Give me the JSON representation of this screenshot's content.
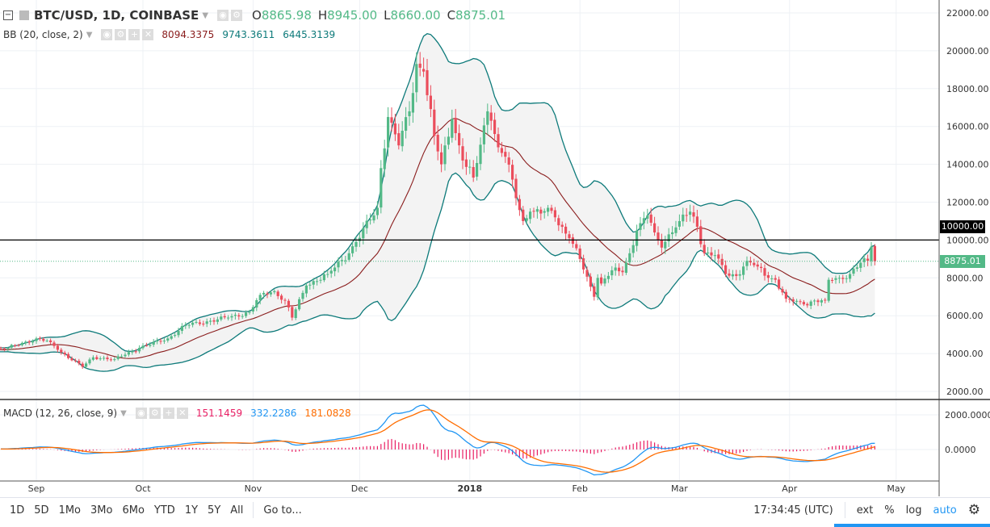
{
  "header": {
    "symbol": "BTC/USD, 1D, COINBASE",
    "open_label": "O",
    "open": "8865.98",
    "high_label": "H",
    "high": "8945.00",
    "low_label": "L",
    "low": "8660.00",
    "close_label": "C",
    "close": "8875.01"
  },
  "bb": {
    "label": "BB (20, close, 2)",
    "basis": "8094.3375",
    "upper": "9743.3611",
    "lower": "6445.3139"
  },
  "macd": {
    "label": "MACD (12, 26, close, 9)",
    "hist": "151.1459",
    "macd": "332.2286",
    "signal": "181.0828"
  },
  "price_axis": [
    "22000.00",
    "20000.00",
    "18000.00",
    "16000.00",
    "14000.00",
    "12000.00",
    "10000.00",
    "8000.00",
    "6000.00",
    "4000.00",
    "2000.00"
  ],
  "macd_axis": [
    "2000.0000",
    "0.0000"
  ],
  "hline_label": "10000.00",
  "last_price_label": "8875.01",
  "time_axis": [
    "Sep",
    "Oct",
    "Nov",
    "Dec",
    "2018",
    "Feb",
    "Mar",
    "Apr",
    "May"
  ],
  "toolbar": {
    "ranges": [
      "1D",
      "5D",
      "1Mo",
      "3Mo",
      "6Mo",
      "YTD",
      "1Y",
      "5Y",
      "All"
    ],
    "goto": "Go to...",
    "time": "17:34:45 (UTC)",
    "ext": "ext",
    "pct": "%",
    "log": "log",
    "auto": "auto"
  },
  "colors": {
    "up": "#53b987",
    "down": "#eb4d5c",
    "band": "#0d7a7a",
    "basis": "#8a1c1c",
    "macd": "#2196f3",
    "signal": "#ff6d00",
    "hist": "#e91e63"
  },
  "chart_data": {
    "type": "candlestick",
    "note": "day index 0 = Aug 24 2017; closes (USD) at key days, interpolated daily",
    "close_keypoints": [
      [
        -30,
        4100
      ],
      [
        -10,
        4200
      ],
      [
        0,
        4300
      ],
      [
        8,
        4800
      ],
      [
        12,
        4600
      ],
      [
        14,
        4200
      ],
      [
        21,
        3300
      ],
      [
        24,
        3800
      ],
      [
        30,
        3700
      ],
      [
        37,
        4300
      ],
      [
        45,
        4800
      ],
      [
        50,
        5500
      ],
      [
        56,
        5700
      ],
      [
        62,
        5900
      ],
      [
        68,
        6200
      ],
      [
        71,
        7100
      ],
      [
        75,
        7300
      ],
      [
        78,
        6800
      ],
      [
        80,
        5900
      ],
      [
        84,
        7600
      ],
      [
        90,
        8200
      ],
      [
        96,
        9300
      ],
      [
        98,
        9900
      ],
      [
        104,
        11700
      ],
      [
        105,
        13800
      ],
      [
        107,
        16500
      ],
      [
        110,
        15000
      ],
      [
        113,
        16800
      ],
      [
        115,
        19300
      ],
      [
        117,
        18900
      ],
      [
        120,
        15500
      ],
      [
        122,
        14000
      ],
      [
        125,
        16400
      ],
      [
        128,
        14200
      ],
      [
        131,
        13300
      ],
      [
        135,
        16800
      ],
      [
        136,
        16300
      ],
      [
        138,
        14900
      ],
      [
        140,
        14400
      ],
      [
        145,
        11000
      ],
      [
        147,
        11500
      ],
      [
        150,
        11400
      ],
      [
        152,
        11700
      ],
      [
        154,
        11200
      ],
      [
        158,
        10100
      ],
      [
        161,
        9000
      ],
      [
        165,
        7000
      ],
      [
        166,
        8000
      ],
      [
        167,
        7700
      ],
      [
        170,
        8400
      ],
      [
        173,
        8300
      ],
      [
        175,
        9300
      ],
      [
        177,
        10500
      ],
      [
        180,
        11300
      ],
      [
        182,
        10400
      ],
      [
        184,
        9600
      ],
      [
        186,
        10300
      ],
      [
        189,
        11000
      ],
      [
        192,
        11500
      ],
      [
        194,
        10700
      ],
      [
        196,
        9300
      ],
      [
        199,
        9200
      ],
      [
        202,
        8200
      ],
      [
        205,
        8100
      ],
      [
        208,
        8900
      ],
      [
        211,
        8600
      ],
      [
        214,
        8000
      ],
      [
        216,
        7900
      ],
      [
        219,
        6900
      ],
      [
        224,
        6600
      ],
      [
        227,
        6800
      ],
      [
        230,
        6800
      ],
      [
        231,
        7900
      ],
      [
        234,
        8000
      ],
      [
        237,
        8200
      ],
      [
        240,
        8800
      ],
      [
        242,
        8900
      ],
      [
        243,
        9650
      ],
      [
        244,
        8875
      ]
    ],
    "horizontal_line": 10000,
    "ylim": [
      2000,
      22000
    ],
    "macd_ylim": [
      -1500,
      2500
    ]
  }
}
